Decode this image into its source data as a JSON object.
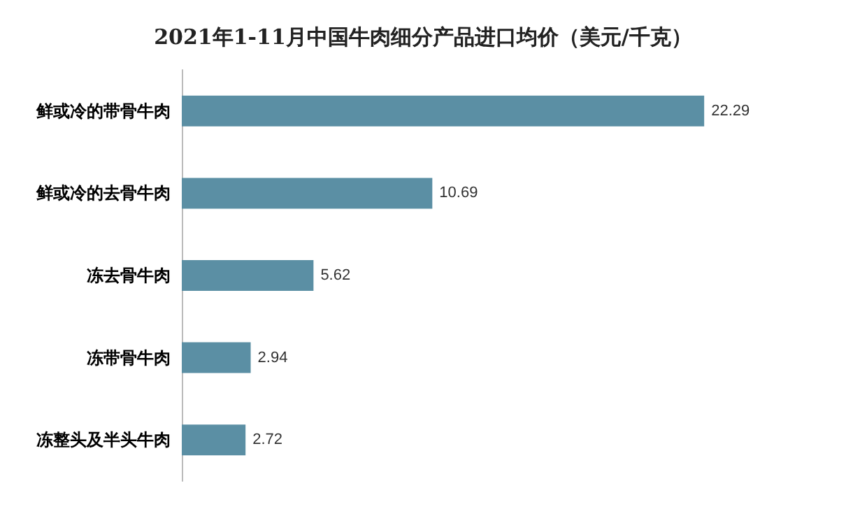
{
  "chart_data": {
    "type": "bar",
    "orientation": "horizontal",
    "title": "2021年1-11月中国牛肉细分产品进口均价（美元/千克）",
    "categories": [
      "鲜或冷的带骨牛肉",
      "鲜或冷的去骨牛肉",
      "冻去骨牛肉",
      "冻带骨牛肉",
      "冻整头及半头牛肉"
    ],
    "values": [
      22.29,
      10.69,
      5.62,
      2.94,
      2.72
    ],
    "color": "#5b8fa4",
    "data_labels": true
  }
}
